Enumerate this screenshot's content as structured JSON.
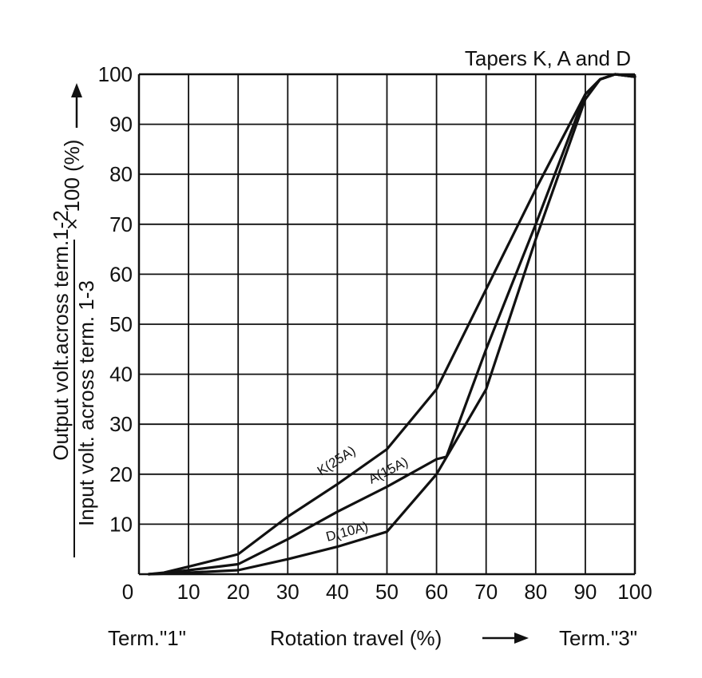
{
  "chart_data": {
    "type": "line",
    "title": "Tapers K, A and D",
    "xlim": [
      0,
      100
    ],
    "ylim": [
      0,
      100
    ],
    "grid": true,
    "x_ticks": [
      "0",
      "10",
      "20",
      "30",
      "40",
      "50",
      "60",
      "70",
      "80",
      "90",
      "100"
    ],
    "y_ticks": [
      "10",
      "20",
      "30",
      "40",
      "50",
      "60",
      "70",
      "80",
      "90",
      "100"
    ],
    "ylabel": {
      "numerator": "Output volt.across term.1-2",
      "denominator": "Input volt. across term.  1-3",
      "multiplier": "× 100 (%)"
    },
    "xlabel": {
      "left": "Term.\"1\"",
      "center": "Rotation travel (%)",
      "right": "Term.\"3\""
    },
    "series": [
      {
        "name": "K(25A)",
        "x": [
          2,
          5,
          10,
          20,
          30,
          40,
          50,
          60,
          70,
          80,
          90,
          93,
          96,
          100
        ],
        "y": [
          0,
          0.3,
          1.5,
          4,
          11.5,
          18,
          25,
          37,
          57,
          77,
          96,
          99,
          100,
          99.5
        ]
      },
      {
        "name": "A(15A)",
        "x": [
          2,
          5,
          10,
          20,
          30,
          40,
          50,
          60,
          62,
          70,
          80,
          90,
          93,
          96,
          100
        ],
        "y": [
          0,
          0.2,
          0.8,
          2,
          7,
          12.5,
          17.5,
          23,
          23.5,
          45,
          70,
          96,
          99,
          100,
          99.5
        ]
      },
      {
        "name": "D(10A)",
        "x": [
          2,
          5,
          10,
          20,
          30,
          40,
          50,
          60,
          70,
          80,
          90,
          93,
          96,
          100
        ],
        "y": [
          0,
          0.1,
          0.3,
          0.8,
          3,
          5.5,
          8.5,
          20,
          37,
          67,
          95,
          99,
          100,
          99.5
        ]
      }
    ]
  }
}
